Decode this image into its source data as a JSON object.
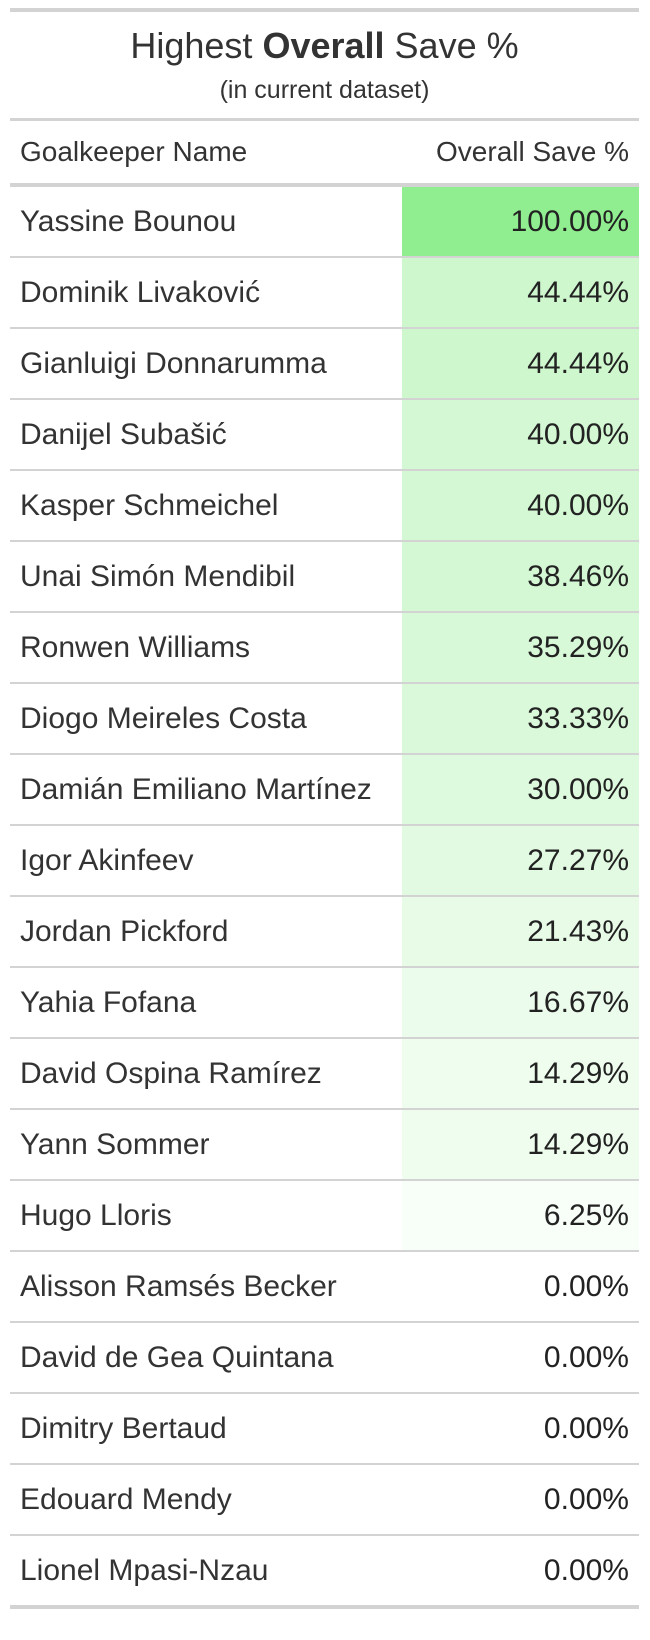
{
  "title": {
    "prefix": "Highest ",
    "bold": "Overall",
    "suffix": " Save %"
  },
  "subtitle": "(in current dataset)",
  "columns": {
    "name": "Goalkeeper Name",
    "value": "Overall Save %"
  },
  "colors": {
    "max": "#90ee90",
    "min": "#ffffff"
  },
  "chart_data": {
    "type": "table",
    "title": "Highest Overall Save %",
    "subtitle": "(in current dataset)",
    "columns": [
      "Goalkeeper Name",
      "Overall Save %"
    ],
    "rows": [
      {
        "name": "Yassine Bounou",
        "value": 100.0,
        "label": "100.00%"
      },
      {
        "name": "Dominik Livaković",
        "value": 44.44,
        "label": "44.44%"
      },
      {
        "name": "Gianluigi Donnarumma",
        "value": 44.44,
        "label": "44.44%"
      },
      {
        "name": "Danijel Subašić",
        "value": 40.0,
        "label": "40.00%"
      },
      {
        "name": "Kasper Schmeichel",
        "value": 40.0,
        "label": "40.00%"
      },
      {
        "name": "Unai Simón Mendibil",
        "value": 38.46,
        "label": "38.46%"
      },
      {
        "name": "Ronwen Williams",
        "value": 35.29,
        "label": "35.29%"
      },
      {
        "name": "Diogo Meireles Costa",
        "value": 33.33,
        "label": "33.33%"
      },
      {
        "name": "Damián Emiliano Martínez",
        "value": 30.0,
        "label": "30.00%"
      },
      {
        "name": "Igor Akinfeev",
        "value": 27.27,
        "label": "27.27%"
      },
      {
        "name": "Jordan Pickford",
        "value": 21.43,
        "label": "21.43%"
      },
      {
        "name": "Yahia Fofana",
        "value": 16.67,
        "label": "16.67%"
      },
      {
        "name": "David Ospina Ramírez",
        "value": 14.29,
        "label": "14.29%"
      },
      {
        "name": "Yann Sommer",
        "value": 14.29,
        "label": "14.29%"
      },
      {
        "name": "Hugo Lloris",
        "value": 6.25,
        "label": "6.25%"
      },
      {
        "name": "Alisson Ramsés Becker",
        "value": 0.0,
        "label": "0.00%"
      },
      {
        "name": "David de Gea Quintana",
        "value": 0.0,
        "label": "0.00%"
      },
      {
        "name": "Dimitry Bertaud",
        "value": 0.0,
        "label": "0.00%"
      },
      {
        "name": "Edouard Mendy",
        "value": 0.0,
        "label": "0.00%"
      },
      {
        "name": "Lionel Mpasi-Nzau",
        "value": 0.0,
        "label": "0.00%"
      }
    ]
  }
}
